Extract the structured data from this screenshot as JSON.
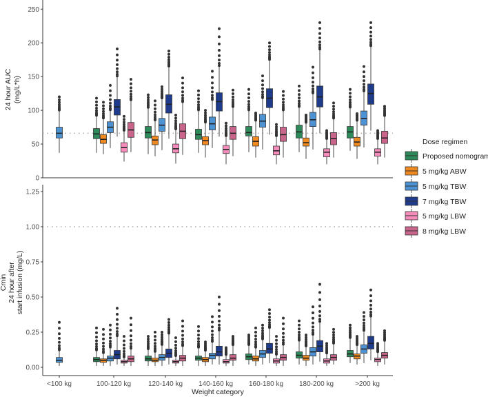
{
  "legend": {
    "title": "Dose regimen",
    "items": [
      "Proposed nomogram",
      "5 mg/kg ABW",
      "5 mg/kg TBW",
      "7 mg/kg TBW",
      "5 mg/kg LBW",
      "8 mg/kg LBW"
    ]
  },
  "xlabel": "Weight category",
  "chart_data": [
    {
      "type": "boxplot",
      "panel": "top",
      "ylabel_lines": [
        "24 hour AUC",
        "(mg/L*h)"
      ],
      "ylim": [
        0,
        250
      ],
      "yticks": [
        "0",
        "50",
        "100",
        "150",
        "200",
        "250"
      ],
      "reference_line": 66,
      "categories": [
        "<100 kg",
        "100-120 kg",
        "120-140 kg",
        "140-160 kg",
        "160-180 kg",
        "180-200 kg",
        ">200 kg"
      ],
      "stats_format": [
        "whisker_low",
        "q1",
        "median",
        "q3",
        "whisker_high",
        "max_outlier"
      ],
      "series": [
        {
          "name": "Proposed nomogram",
          "color": "#2f8a5b",
          "stats": [
            null,
            [
              37,
              58,
              65,
              73,
              92,
              118
            ],
            [
              35,
              59,
              67,
              76,
              104,
              123
            ],
            [
              37,
              57,
              64,
              72,
              100,
              129
            ],
            [
              38,
              62,
              67,
              76,
              100,
              131
            ],
            [
              38,
              59,
              68,
              78,
              105,
              136
            ],
            [
              40,
              59,
              68,
              76,
              104,
              131
            ]
          ]
        },
        {
          "name": "5 mg/kg ABW",
          "color": "#f08a1e",
          "stats": [
            null,
            [
              35,
              51,
              57,
              64,
              88,
              112
            ],
            [
              32,
              49,
              56,
              62,
              85,
              114
            ],
            [
              30,
              49,
              55,
              61,
              82,
              100
            ],
            [
              30,
              47,
              54,
              61,
              85,
              96
            ],
            [
              28,
              47,
              52,
              59,
              82,
              93
            ],
            [
              28,
              47,
              53,
              60,
              85,
              95
            ]
          ]
        },
        {
          "name": "5 mg/kg TBW",
          "color": "#4d93d3",
          "stats": [
            [
              37,
              59,
              66,
              75,
              100,
              120
            ],
            [
              44,
              67,
              75,
              83,
              100,
              137
            ],
            [
              41,
              69,
              78,
              88,
              118,
              135
            ],
            [
              44,
              71,
              80,
              90,
              115,
              158
            ],
            [
              42,
              75,
              84,
              94,
              118,
              151
            ],
            [
              42,
              76,
              86,
              97,
              125,
              164
            ],
            [
              45,
              78,
              88,
              99,
              128,
              165
            ]
          ]
        },
        {
          "name": "7 mg/kg TBW",
          "color": "#1f3b8c",
          "stats": [
            null,
            [
              61,
              93,
              105,
              116,
              150,
              191
            ],
            [
              58,
              96,
              109,
              123,
              165,
              188
            ],
            [
              61,
              99,
              113,
              126,
              165,
              221
            ],
            [
              64,
              104,
              118,
              132,
              175,
              200
            ],
            [
              66,
              105,
              120,
              136,
              190,
              230
            ],
            [
              70,
              109,
              125,
              139,
              195,
              230
            ]
          ]
        },
        {
          "name": "5 mg/kg LBW",
          "color": "#f58cbb",
          "stats": [
            null,
            [
              24,
              38,
              45,
              52,
              70,
              91
            ],
            [
              21,
              37,
              43,
              50,
              72,
              93
            ],
            [
              20,
              36,
              42,
              48,
              62,
              81
            ],
            [
              20,
              34,
              40,
              47,
              62,
              79
            ],
            [
              20,
              31,
              38,
              43,
              58,
              70
            ],
            [
              20,
              32,
              38,
              43,
              58,
              70
            ]
          ]
        },
        {
          "name": "8 mg/kg LBW",
          "color": "#c9648b",
          "stats": [
            null,
            [
              38,
              60,
              71,
              82,
              115,
              146
            ],
            [
              34,
              58,
              69,
              80,
              112,
              148
            ],
            [
              32,
              57,
              66,
              76,
              105,
              130
            ],
            [
              30,
              54,
              64,
              75,
              100,
              128
            ],
            [
              30,
              49,
              58,
              67,
              88,
              111
            ],
            [
              30,
              51,
              59,
              69,
              92,
              106
            ]
          ]
        }
      ]
    },
    {
      "type": "boxplot",
      "panel": "bottom",
      "ylabel_lines": [
        "Cmin",
        "24 hour after",
        "start infusion (mg/L)"
      ],
      "ylim": [
        -0.06,
        1.25
      ],
      "yticks": [
        "0.00",
        "0.25",
        "0.50",
        "0.75",
        "1.00",
        "1.25"
      ],
      "reference_line": 1.0,
      "categories": [
        "<100 kg",
        "100-120 kg",
        "120-140 kg",
        "140-160 kg",
        "160-180 kg",
        "180-200 kg",
        ">200 kg"
      ],
      "stats_format": [
        "whisker_low",
        "q1",
        "median",
        "q3",
        "whisker_high",
        "max_outlier"
      ],
      "series": [
        {
          "name": "Proposed nomogram",
          "color": "#2f8a5b",
          "stats": [
            null,
            [
              0.01,
              0.04,
              0.055,
              0.07,
              0.12,
              0.28
            ],
            [
              0.01,
              0.045,
              0.06,
              0.08,
              0.13,
              0.22
            ],
            [
              0.01,
              0.05,
              0.065,
              0.08,
              0.14,
              0.29
            ],
            [
              0.02,
              0.055,
              0.075,
              0.095,
              0.16,
              0.23
            ],
            [
              0.02,
              0.065,
              0.085,
              0.11,
              0.19,
              0.33
            ],
            [
              0.03,
              0.075,
              0.095,
              0.12,
              0.21,
              0.3
            ]
          ]
        },
        {
          "name": "5 mg/kg ABW",
          "color": "#f08a1e",
          "stats": [
            null,
            [
              0.01,
              0.035,
              0.05,
              0.06,
              0.1,
              0.27
            ],
            [
              0.01,
              0.04,
              0.05,
              0.065,
              0.11,
              0.25
            ],
            [
              0.01,
              0.04,
              0.055,
              0.07,
              0.12,
              0.18
            ],
            [
              0.01,
              0.045,
              0.06,
              0.08,
              0.14,
              0.28
            ],
            [
              0.01,
              0.05,
              0.065,
              0.085,
              0.15,
              0.23
            ],
            [
              0.02,
              0.06,
              0.08,
              0.095,
              0.16,
              0.22
            ]
          ]
        },
        {
          "name": "5 mg/kg TBW",
          "color": "#4d93d3",
          "stats": [
            [
              0.01,
              0.035,
              0.05,
              0.07,
              0.12,
              0.32
            ],
            [
              0.01,
              0.045,
              0.065,
              0.08,
              0.14,
              0.3
            ],
            [
              0.01,
              0.05,
              0.07,
              0.09,
              0.16,
              0.25
            ],
            [
              0.02,
              0.06,
              0.085,
              0.1,
              0.18,
              0.36
            ],
            [
              0.02,
              0.07,
              0.095,
              0.12,
              0.2,
              0.3
            ],
            [
              0.02,
              0.08,
              0.11,
              0.14,
              0.23,
              0.43
            ],
            [
              0.03,
              0.1,
              0.13,
              0.16,
              0.26,
              0.39
            ]
          ]
        },
        {
          "name": "7 mg/kg TBW",
          "color": "#1f3b8c",
          "stats": [
            null,
            [
              0.02,
              0.06,
              0.09,
              0.12,
              0.22,
              0.42
            ],
            [
              0.02,
              0.07,
              0.1,
              0.13,
              0.24,
              0.34
            ],
            [
              0.02,
              0.08,
              0.11,
              0.15,
              0.26,
              0.5
            ],
            [
              0.03,
              0.1,
              0.13,
              0.17,
              0.28,
              0.41
            ],
            [
              0.04,
              0.11,
              0.15,
              0.19,
              0.32,
              0.59
            ],
            [
              0.05,
              0.13,
              0.17,
              0.22,
              0.36,
              0.55
            ]
          ]
        },
        {
          "name": "5 mg/kg LBW",
          "color": "#f58cbb",
          "stats": [
            null,
            [
              0.01,
              0.03,
              0.04,
              0.05,
              0.07,
              0.22
            ],
            [
              0.01,
              0.03,
              0.04,
              0.05,
              0.08,
              0.21
            ],
            [
              0.01,
              0.03,
              0.04,
              0.055,
              0.09,
              0.14
            ],
            [
              0.01,
              0.03,
              0.045,
              0.06,
              0.09,
              0.22
            ],
            [
              0.01,
              0.03,
              0.045,
              0.06,
              0.1,
              0.17
            ],
            [
              0.01,
              0.04,
              0.055,
              0.065,
              0.11,
              0.17
            ]
          ]
        },
        {
          "name": "8 mg/kg LBW",
          "color": "#c9648b",
          "stats": [
            null,
            [
              0.01,
              0.04,
              0.06,
              0.08,
              0.13,
              0.35
            ],
            [
              0.01,
              0.045,
              0.065,
              0.085,
              0.15,
              0.33
            ],
            [
              0.01,
              0.05,
              0.065,
              0.09,
              0.16,
              0.22
            ],
            [
              0.01,
              0.05,
              0.07,
              0.09,
              0.16,
              0.35
            ],
            [
              0.02,
              0.05,
              0.07,
              0.09,
              0.17,
              0.27
            ],
            [
              0.02,
              0.065,
              0.085,
              0.105,
              0.19,
              0.26
            ]
          ]
        }
      ]
    }
  ]
}
